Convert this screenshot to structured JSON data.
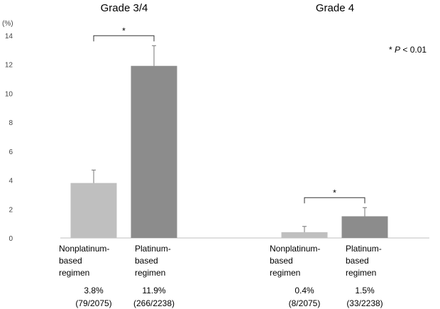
{
  "chart_data": {
    "type": "bar",
    "y_unit": "(%)",
    "ylim": [
      0,
      14
    ],
    "yticks": [
      0,
      2,
      4,
      6,
      8,
      10,
      12,
      14
    ],
    "colors": [
      "#bfbfbf",
      "#8c8c8c"
    ],
    "annotation": {
      "prefix": "*",
      "italic": "P",
      "suffix": "< 0.01"
    },
    "groups": [
      {
        "title": "Grade 3/4",
        "categories": [
          [
            "Nonplatinum-",
            "based",
            "regimen"
          ],
          [
            "Platinum-",
            "based",
            "regimen"
          ]
        ],
        "values": [
          3.8,
          11.9
        ],
        "errors": [
          0.9,
          1.4
        ],
        "value_labels": [
          "3.8%",
          "11.9%"
        ],
        "counts": [
          "(79/2075)",
          "(266/2238)"
        ],
        "significance": "*"
      },
      {
        "title": "Grade 4",
        "categories": [
          [
            "Nonplatinum-",
            "based",
            "regimen"
          ],
          [
            "Platinum-",
            "based",
            "regimen"
          ]
        ],
        "values": [
          0.4,
          1.5
        ],
        "errors": [
          0.4,
          0.6
        ],
        "value_labels": [
          "0.4%",
          "1.5%"
        ],
        "counts": [
          "(8/2075)",
          "(33/2238)"
        ],
        "significance": "*"
      }
    ]
  }
}
